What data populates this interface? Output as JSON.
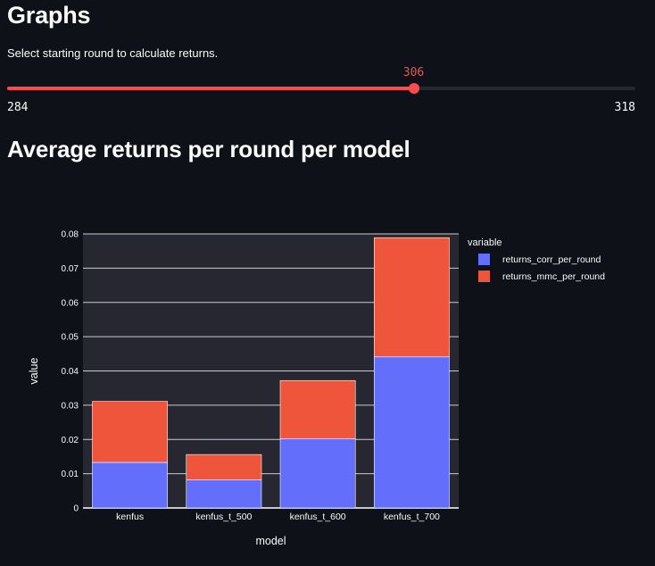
{
  "page": {
    "title": "Graphs",
    "slider_caption": "Select starting round to calculate returns.",
    "section_title": "Average returns per round per model"
  },
  "slider": {
    "min": 284,
    "max": 318,
    "value": 306,
    "min_label": "284",
    "max_label": "318",
    "value_label": "306",
    "accent": "#ff4b4b"
  },
  "chart_data": {
    "type": "bar",
    "stacked": true,
    "categories": [
      "kenfus",
      "kenfus_t_500",
      "kenfus_t_600",
      "kenfus_t_700"
    ],
    "series": [
      {
        "name": "returns_corr_per_round",
        "color": "#636efa",
        "values": [
          0.0133,
          0.0082,
          0.0202,
          0.0441
        ]
      },
      {
        "name": "returns_mmc_per_round",
        "color": "#ef553b",
        "values": [
          0.0178,
          0.0074,
          0.017,
          0.0348
        ]
      }
    ],
    "xlabel": "model",
    "ylabel": "value",
    "ylim": [
      0,
      0.08
    ],
    "yticks": [
      0,
      0.01,
      0.02,
      0.03,
      0.04,
      0.05,
      0.06,
      0.07,
      0.08
    ],
    "ytick_labels": [
      "0",
      "0.01",
      "0.02",
      "0.03",
      "0.04",
      "0.05",
      "0.06",
      "0.07",
      "0.08"
    ],
    "legend_title": "variable",
    "legend_position": "right",
    "grid": true
  }
}
